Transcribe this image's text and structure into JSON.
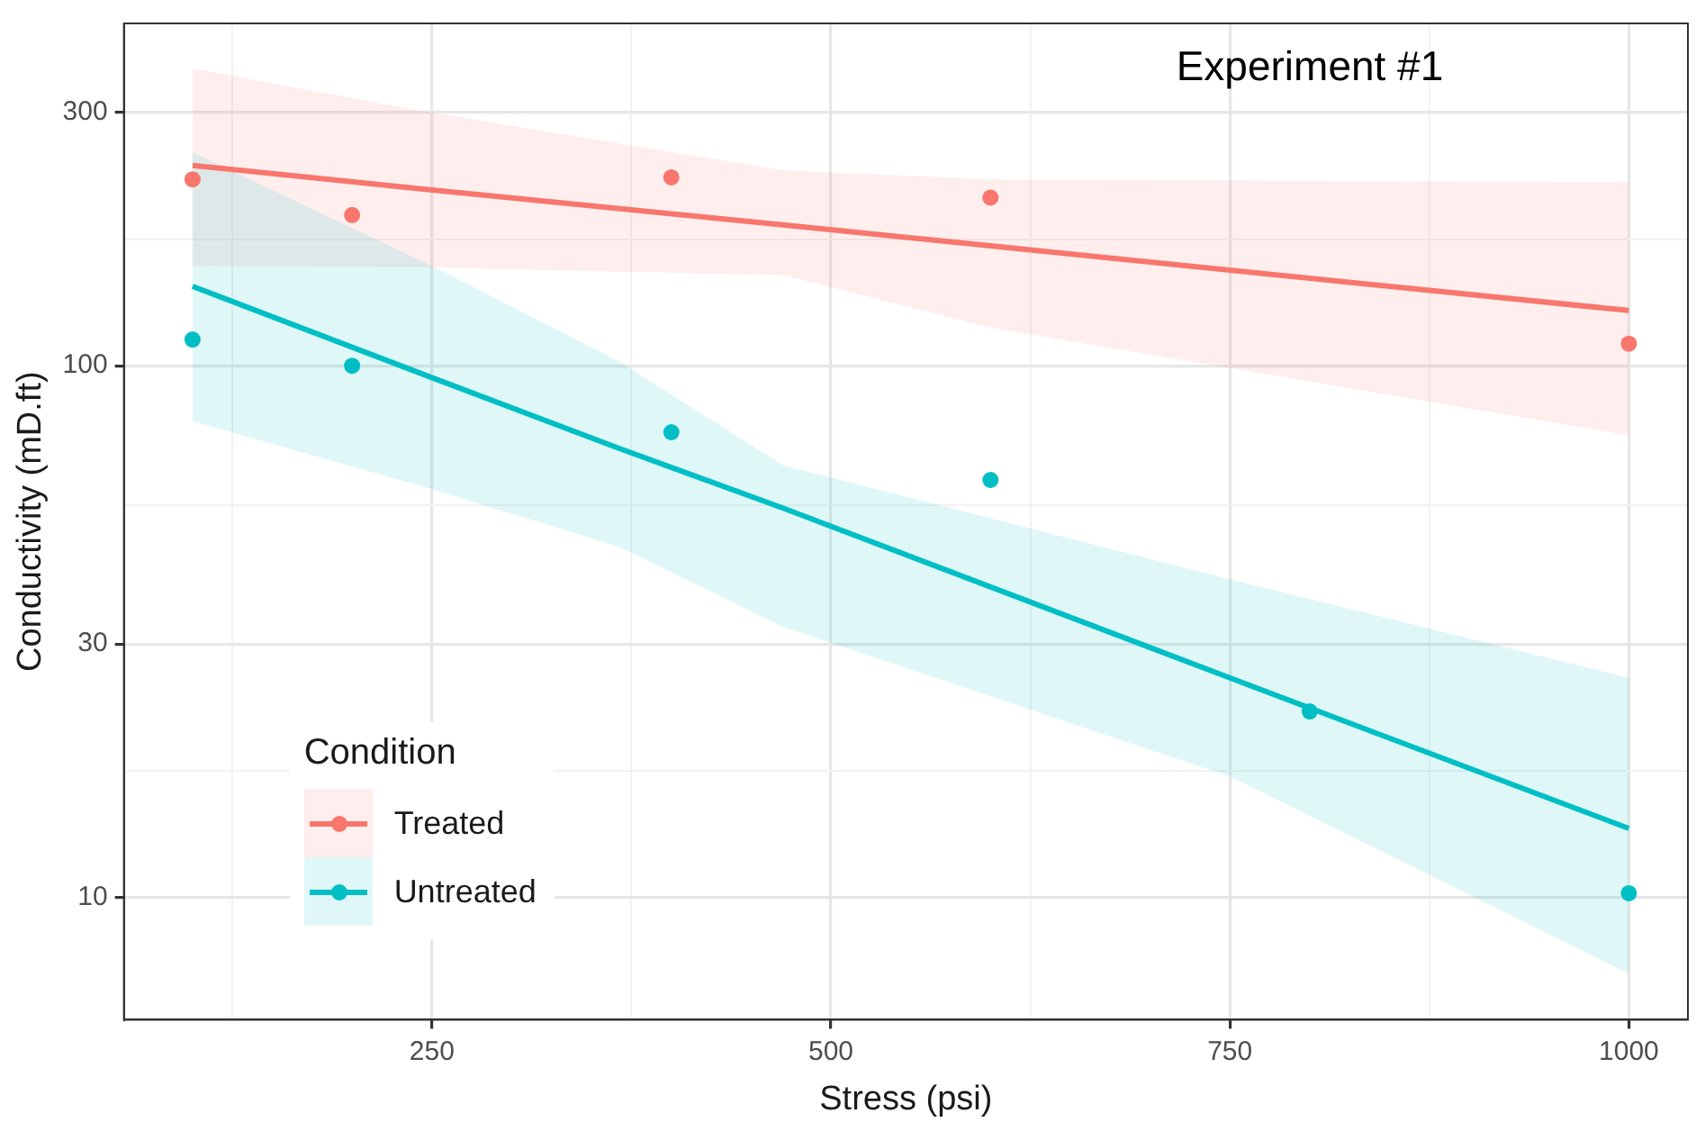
{
  "chart_data": {
    "type": "scatter",
    "xlabel": "Stress (psi)",
    "ylabel": "Conductivity (mD.ft)",
    "legend_title": "Condition",
    "annotations": [
      "Experiment #1"
    ],
    "log": "y",
    "grid": true,
    "legend": "bottom left",
    "marker": "circle",
    "xlim": [
      57,
      1037
    ],
    "ylim": [
      5.9,
      440
    ],
    "xticks": [
      {
        "value": 125,
        "label": null
      },
      250,
      {
        "value": 375,
        "label": null
      },
      500,
      {
        "value": 625,
        "label": null
      },
      750,
      {
        "value": 875,
        "label": null
      },
      1000
    ],
    "yticks": [
      10,
      {
        "value": 17.3,
        "label": null
      },
      30,
      {
        "value": 54.8,
        "label": null
      },
      100,
      {
        "value": 173,
        "label": null
      },
      300
    ],
    "series": [
      {
        "type": "line",
        "marker": "none",
        "color": "#f8766d",
        "x": [
          100,
          250,
          470,
          600,
          1000
        ],
        "values": [
          238,
          214,
          184,
          168,
          127
        ],
        "lower": [
          154,
          153,
          148,
          118,
          74
        ],
        "upper": [
          362,
          299,
          233,
          224,
          221
        ]
      },
      {
        "type": "line",
        "marker": "none",
        "color": "#00bfc4",
        "x": [
          100,
          250,
          367,
          470,
          750,
          1000
        ],
        "values": [
          141,
          95,
          70,
          54,
          25.9,
          13.5
        ],
        "lower": [
          78.7,
          58.6,
          45.7,
          32.3,
          16.9,
          7.2
        ],
        "upper": [
          252,
          154,
          102,
          65,
          39.7,
          25.9
        ]
      },
      {
        "type": "scatter",
        "name": "Treated",
        "color": "#f8766d",
        "x": [
          100,
          200,
          400,
          600,
          1000
        ],
        "values": [
          224,
          192,
          226,
          207,
          110
        ]
      },
      {
        "type": "scatter",
        "name": "Untreated",
        "color": "#00bfc4",
        "x": [
          100,
          200,
          400,
          600,
          800,
          1000
        ],
        "values": [
          112,
          100,
          75,
          61,
          22.4,
          10.2
        ]
      }
    ]
  }
}
